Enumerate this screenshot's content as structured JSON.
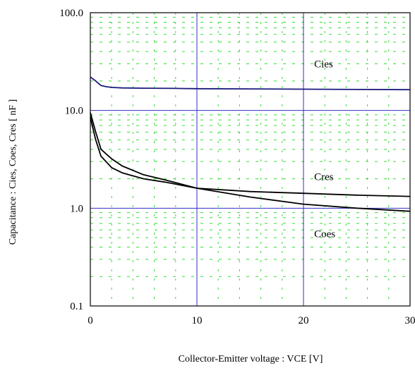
{
  "chart_data": {
    "type": "line",
    "title": "",
    "xlabel": "Collector-Emitter voltage : VCE [V]",
    "ylabel": "Capacitance  :  Cies, Coes, Cres  [ nF ]",
    "xlim": [
      0,
      30
    ],
    "ylim": [
      0.1,
      100
    ],
    "yscale": "log",
    "x_ticks": [
      0,
      10,
      20,
      30
    ],
    "x_tick_labels": [
      "0",
      "10",
      "20",
      "30"
    ],
    "y_ticks": [
      0.1,
      1,
      10,
      100
    ],
    "y_tick_labels": [
      "0.1",
      "1.0",
      "10.0",
      "100.0"
    ],
    "grid": true,
    "colors": {
      "major_grid": "#3030c0",
      "minor_grid": "#33dd33",
      "cies": "#1a1a80",
      "curves": "#000000"
    },
    "series": [
      {
        "name": "Cies",
        "label_at": [
          21,
          30
        ],
        "x": [
          0,
          0.5,
          1,
          1.5,
          2,
          3,
          5,
          8,
          10,
          15,
          20,
          25,
          30
        ],
        "y": [
          22,
          20,
          18,
          17.5,
          17.2,
          17.0,
          16.9,
          16.8,
          16.7,
          16.6,
          16.5,
          16.4,
          16.3
        ]
      },
      {
        "name": "Cres",
        "label_at": [
          21,
          2.1
        ],
        "x": [
          0,
          0.5,
          1,
          2,
          3,
          5,
          7,
          10,
          15,
          20,
          25,
          30
        ],
        "y": [
          9.5,
          6.0,
          4.0,
          3.2,
          2.7,
          2.2,
          1.95,
          1.6,
          1.48,
          1.42,
          1.36,
          1.32
        ]
      },
      {
        "name": "Coes",
        "label_at": [
          21,
          0.55
        ],
        "x": [
          0,
          0.5,
          1,
          2,
          3,
          5,
          7,
          10,
          15,
          20,
          25,
          30
        ],
        "y": [
          8.5,
          5.0,
          3.4,
          2.6,
          2.3,
          2.0,
          1.85,
          1.6,
          1.3,
          1.1,
          1.0,
          0.93
        ]
      }
    ]
  }
}
